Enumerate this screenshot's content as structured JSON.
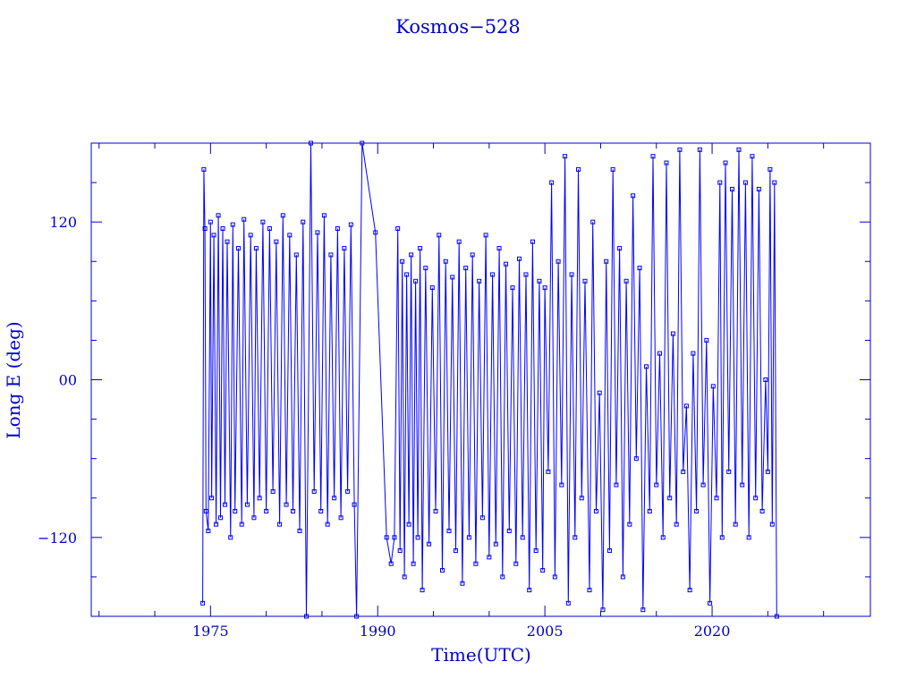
{
  "chart_data": {
    "type": "line",
    "title": "Kosmos−528",
    "xlabel": "Time(UTC)",
    "ylabel": "Long E (deg)",
    "xlim": [
      1964.3,
      2034.2
    ],
    "ylim": [
      -180,
      180
    ],
    "xticks": [
      1975,
      1990,
      2005,
      2020
    ],
    "xtick_labels": [
      "1975",
      "1990",
      "2005",
      "2020"
    ],
    "yticks": [
      120,
      0,
      -120
    ],
    "ytick_labels": [
      "120",
      "00",
      "−120"
    ],
    "grid": false,
    "marker": "square",
    "color": "#0000ff",
    "points": [
      [
        1974.3,
        -170
      ],
      [
        1974.4,
        160
      ],
      [
        1974.5,
        115
      ],
      [
        1974.6,
        -100
      ],
      [
        1974.8,
        -115
      ],
      [
        1975.0,
        120
      ],
      [
        1975.1,
        -90
      ],
      [
        1975.3,
        110
      ],
      [
        1975.5,
        -110
      ],
      [
        1975.7,
        125
      ],
      [
        1975.9,
        -105
      ],
      [
        1976.1,
        115
      ],
      [
        1976.3,
        -95
      ],
      [
        1976.5,
        105
      ],
      [
        1976.8,
        -120
      ],
      [
        1977.0,
        118
      ],
      [
        1977.2,
        -100
      ],
      [
        1977.5,
        100
      ],
      [
        1977.8,
        -110
      ],
      [
        1978.0,
        122
      ],
      [
        1978.3,
        -95
      ],
      [
        1978.6,
        110
      ],
      [
        1978.9,
        -105
      ],
      [
        1979.1,
        100
      ],
      [
        1979.4,
        -90
      ],
      [
        1979.7,
        120
      ],
      [
        1980.0,
        -100
      ],
      [
        1980.3,
        115
      ],
      [
        1980.6,
        -85
      ],
      [
        1980.9,
        105
      ],
      [
        1981.2,
        -110
      ],
      [
        1981.5,
        125
      ],
      [
        1981.8,
        -95
      ],
      [
        1982.1,
        110
      ],
      [
        1982.4,
        -100
      ],
      [
        1982.7,
        95
      ],
      [
        1983.0,
        -115
      ],
      [
        1983.3,
        120
      ],
      [
        1983.6,
        -180
      ],
      [
        1984.0,
        180
      ],
      [
        1984.3,
        -85
      ],
      [
        1984.6,
        112
      ],
      [
        1984.9,
        -100
      ],
      [
        1985.2,
        125
      ],
      [
        1985.5,
        -110
      ],
      [
        1985.8,
        95
      ],
      [
        1986.1,
        -90
      ],
      [
        1986.4,
        115
      ],
      [
        1986.7,
        -105
      ],
      [
        1987.0,
        100
      ],
      [
        1987.3,
        -85
      ],
      [
        1987.6,
        118
      ],
      [
        1987.9,
        -95
      ],
      [
        1988.1,
        -180
      ],
      [
        1988.6,
        180
      ],
      [
        1989.8,
        112
      ],
      [
        1990.8,
        -120
      ],
      [
        1991.2,
        -140
      ],
      [
        1991.5,
        -120
      ],
      [
        1991.8,
        115
      ],
      [
        1992.0,
        -130
      ],
      [
        1992.2,
        90
      ],
      [
        1992.4,
        -150
      ],
      [
        1992.6,
        80
      ],
      [
        1992.8,
        -110
      ],
      [
        1993.0,
        95
      ],
      [
        1993.2,
        -140
      ],
      [
        1993.4,
        75
      ],
      [
        1993.6,
        -120
      ],
      [
        1993.8,
        100
      ],
      [
        1994.0,
        -160
      ],
      [
        1994.3,
        85
      ],
      [
        1994.6,
        -125
      ],
      [
        1994.9,
        70
      ],
      [
        1995.2,
        -100
      ],
      [
        1995.5,
        110
      ],
      [
        1995.8,
        -145
      ],
      [
        1996.1,
        90
      ],
      [
        1996.4,
        -115
      ],
      [
        1996.7,
        78
      ],
      [
        1997.0,
        -130
      ],
      [
        1997.3,
        105
      ],
      [
        1997.6,
        -155
      ],
      [
        1997.9,
        85
      ],
      [
        1998.2,
        -120
      ],
      [
        1998.5,
        95
      ],
      [
        1998.8,
        -140
      ],
      [
        1999.1,
        75
      ],
      [
        1999.4,
        -105
      ],
      [
        1999.7,
        110
      ],
      [
        2000.0,
        -135
      ],
      [
        2000.3,
        80
      ],
      [
        2000.6,
        -125
      ],
      [
        2000.9,
        100
      ],
      [
        2001.2,
        -150
      ],
      [
        2001.5,
        88
      ],
      [
        2001.8,
        -115
      ],
      [
        2002.1,
        70
      ],
      [
        2002.4,
        -140
      ],
      [
        2002.7,
        92
      ],
      [
        2003.0,
        -120
      ],
      [
        2003.3,
        80
      ],
      [
        2003.6,
        -160
      ],
      [
        2003.9,
        105
      ],
      [
        2004.2,
        -130
      ],
      [
        2004.5,
        75
      ],
      [
        2004.8,
        -145
      ],
      [
        2005.0,
        70
      ],
      [
        2005.3,
        -70
      ],
      [
        2005.6,
        150
      ],
      [
        2005.9,
        -150
      ],
      [
        2006.2,
        90
      ],
      [
        2006.5,
        -80
      ],
      [
        2006.8,
        170
      ],
      [
        2007.1,
        -170
      ],
      [
        2007.4,
        80
      ],
      [
        2007.7,
        -120
      ],
      [
        2008.0,
        160
      ],
      [
        2008.3,
        -90
      ],
      [
        2008.6,
        75
      ],
      [
        2009.0,
        -160
      ],
      [
        2009.3,
        120
      ],
      [
        2009.6,
        -100
      ],
      [
        2009.9,
        -10
      ],
      [
        2010.2,
        -175
      ],
      [
        2010.5,
        90
      ],
      [
        2010.8,
        -130
      ],
      [
        2011.1,
        160
      ],
      [
        2011.4,
        -80
      ],
      [
        2011.7,
        100
      ],
      [
        2012.0,
        -150
      ],
      [
        2012.3,
        75
      ],
      [
        2012.6,
        -110
      ],
      [
        2012.9,
        140
      ],
      [
        2013.2,
        -60
      ],
      [
        2013.5,
        85
      ],
      [
        2013.8,
        -175
      ],
      [
        2014.1,
        10
      ],
      [
        2014.4,
        -100
      ],
      [
        2014.7,
        170
      ],
      [
        2015.0,
        -80
      ],
      [
        2015.3,
        20
      ],
      [
        2015.6,
        -120
      ],
      [
        2015.9,
        165
      ],
      [
        2016.2,
        -90
      ],
      [
        2016.5,
        35
      ],
      [
        2016.8,
        -110
      ],
      [
        2017.1,
        175
      ],
      [
        2017.4,
        -70
      ],
      [
        2017.7,
        -20
      ],
      [
        2018.0,
        -160
      ],
      [
        2018.3,
        20
      ],
      [
        2018.6,
        -100
      ],
      [
        2018.9,
        175
      ],
      [
        2019.2,
        -80
      ],
      [
        2019.5,
        30
      ],
      [
        2019.8,
        -170
      ],
      [
        2020.1,
        -5
      ],
      [
        2020.4,
        -90
      ],
      [
        2020.7,
        150
      ],
      [
        2020.9,
        -120
      ],
      [
        2021.2,
        165
      ],
      [
        2021.5,
        -70
      ],
      [
        2021.8,
        145
      ],
      [
        2022.1,
        -110
      ],
      [
        2022.4,
        175
      ],
      [
        2022.7,
        -80
      ],
      [
        2023.0,
        150
      ],
      [
        2023.3,
        -120
      ],
      [
        2023.6,
        170
      ],
      [
        2023.9,
        -90
      ],
      [
        2024.2,
        145
      ],
      [
        2024.5,
        -100
      ],
      [
        2024.8,
        0
      ],
      [
        2025.0,
        -70
      ],
      [
        2025.2,
        160
      ],
      [
        2025.4,
        -110
      ],
      [
        2025.6,
        150
      ],
      [
        2025.8,
        -180
      ]
    ]
  }
}
